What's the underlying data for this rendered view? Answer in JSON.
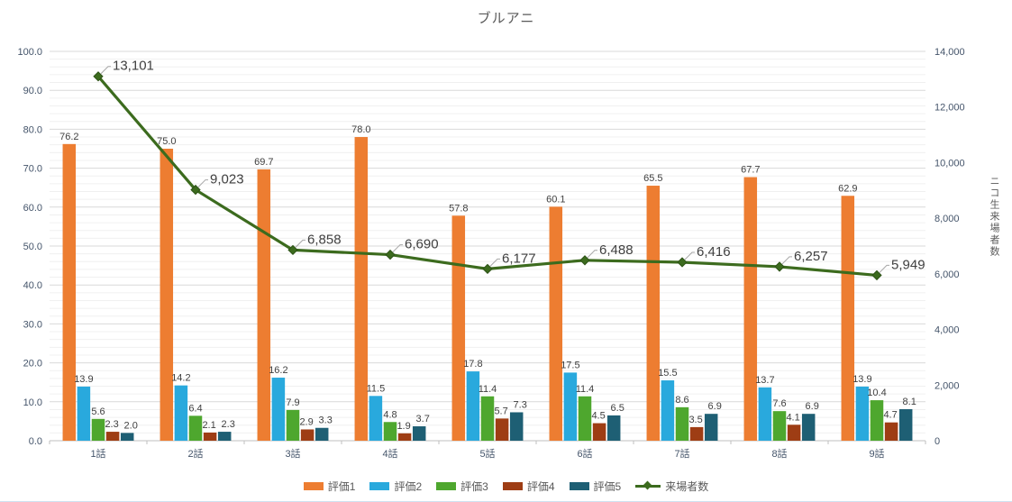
{
  "title": "ブルアニ",
  "colors": {
    "title_text": "#595959",
    "axis_tick_text": "#44546A",
    "data_label_text": "#404040",
    "major_gridline": "#D9D9D9",
    "minor_gridline": "#F0F0F0",
    "axis_line": "#BFBFBF",
    "leader_line": "#A6A6A6"
  },
  "chart_data": {
    "type": "bar",
    "subtype": "combo bar + line (secondary axis)",
    "title": "ブルアニ",
    "categories": [
      "1話",
      "2話",
      "3話",
      "4話",
      "5話",
      "6話",
      "7話",
      "8話",
      "9話"
    ],
    "series": [
      {
        "name": "評価1",
        "type": "bar",
        "axis": "left",
        "color": "#ED7D31",
        "values": [
          76.2,
          75.0,
          69.7,
          78.0,
          57.8,
          60.1,
          65.5,
          67.7,
          62.9
        ]
      },
      {
        "name": "評価2",
        "type": "bar",
        "axis": "left",
        "color": "#29A9DD",
        "values": [
          13.9,
          14.2,
          16.2,
          11.5,
          17.8,
          17.5,
          15.5,
          13.7,
          13.9
        ]
      },
      {
        "name": "評価3",
        "type": "bar",
        "axis": "left",
        "color": "#4EA72E",
        "values": [
          5.6,
          6.4,
          7.9,
          4.8,
          11.4,
          11.4,
          8.6,
          7.6,
          10.4
        ]
      },
      {
        "name": "評価4",
        "type": "bar",
        "axis": "left",
        "color": "#9E3D14",
        "values": [
          2.3,
          2.1,
          2.9,
          1.9,
          5.7,
          4.5,
          3.5,
          4.1,
          4.7
        ]
      },
      {
        "name": "評価5",
        "type": "bar",
        "axis": "left",
        "color": "#1E5F74",
        "values": [
          2.0,
          2.3,
          3.3,
          3.7,
          7.3,
          6.5,
          6.9,
          6.9,
          8.1
        ]
      },
      {
        "name": "来場者数",
        "type": "line",
        "axis": "right",
        "color": "#3C6B1E",
        "marker_color": "#2C5216",
        "values": [
          13101,
          9023,
          6858,
          6690,
          6177,
          6488,
          6416,
          6257,
          5949
        ],
        "labels": [
          "13,101",
          "9,023",
          "6,858",
          "6,690",
          "6,177",
          "6,488",
          "6,416",
          "6,257",
          "5,949"
        ]
      }
    ],
    "left_axis": {
      "min": 0,
      "max": 100,
      "major": 10,
      "minor": 2,
      "ticks": [
        "0.0",
        "10.0",
        "20.0",
        "30.0",
        "40.0",
        "50.0",
        "60.0",
        "70.0",
        "80.0",
        "90.0",
        "100.0"
      ]
    },
    "right_axis": {
      "min": 0,
      "max": 14000,
      "major": 2000,
      "title": "ニコ生来場者数",
      "ticks": [
        "0",
        "2,000",
        "4,000",
        "6,000",
        "8,000",
        "10,000",
        "12,000",
        "14,000"
      ]
    },
    "legend_position": "bottom",
    "gridlines": "horizontal major + minor"
  }
}
